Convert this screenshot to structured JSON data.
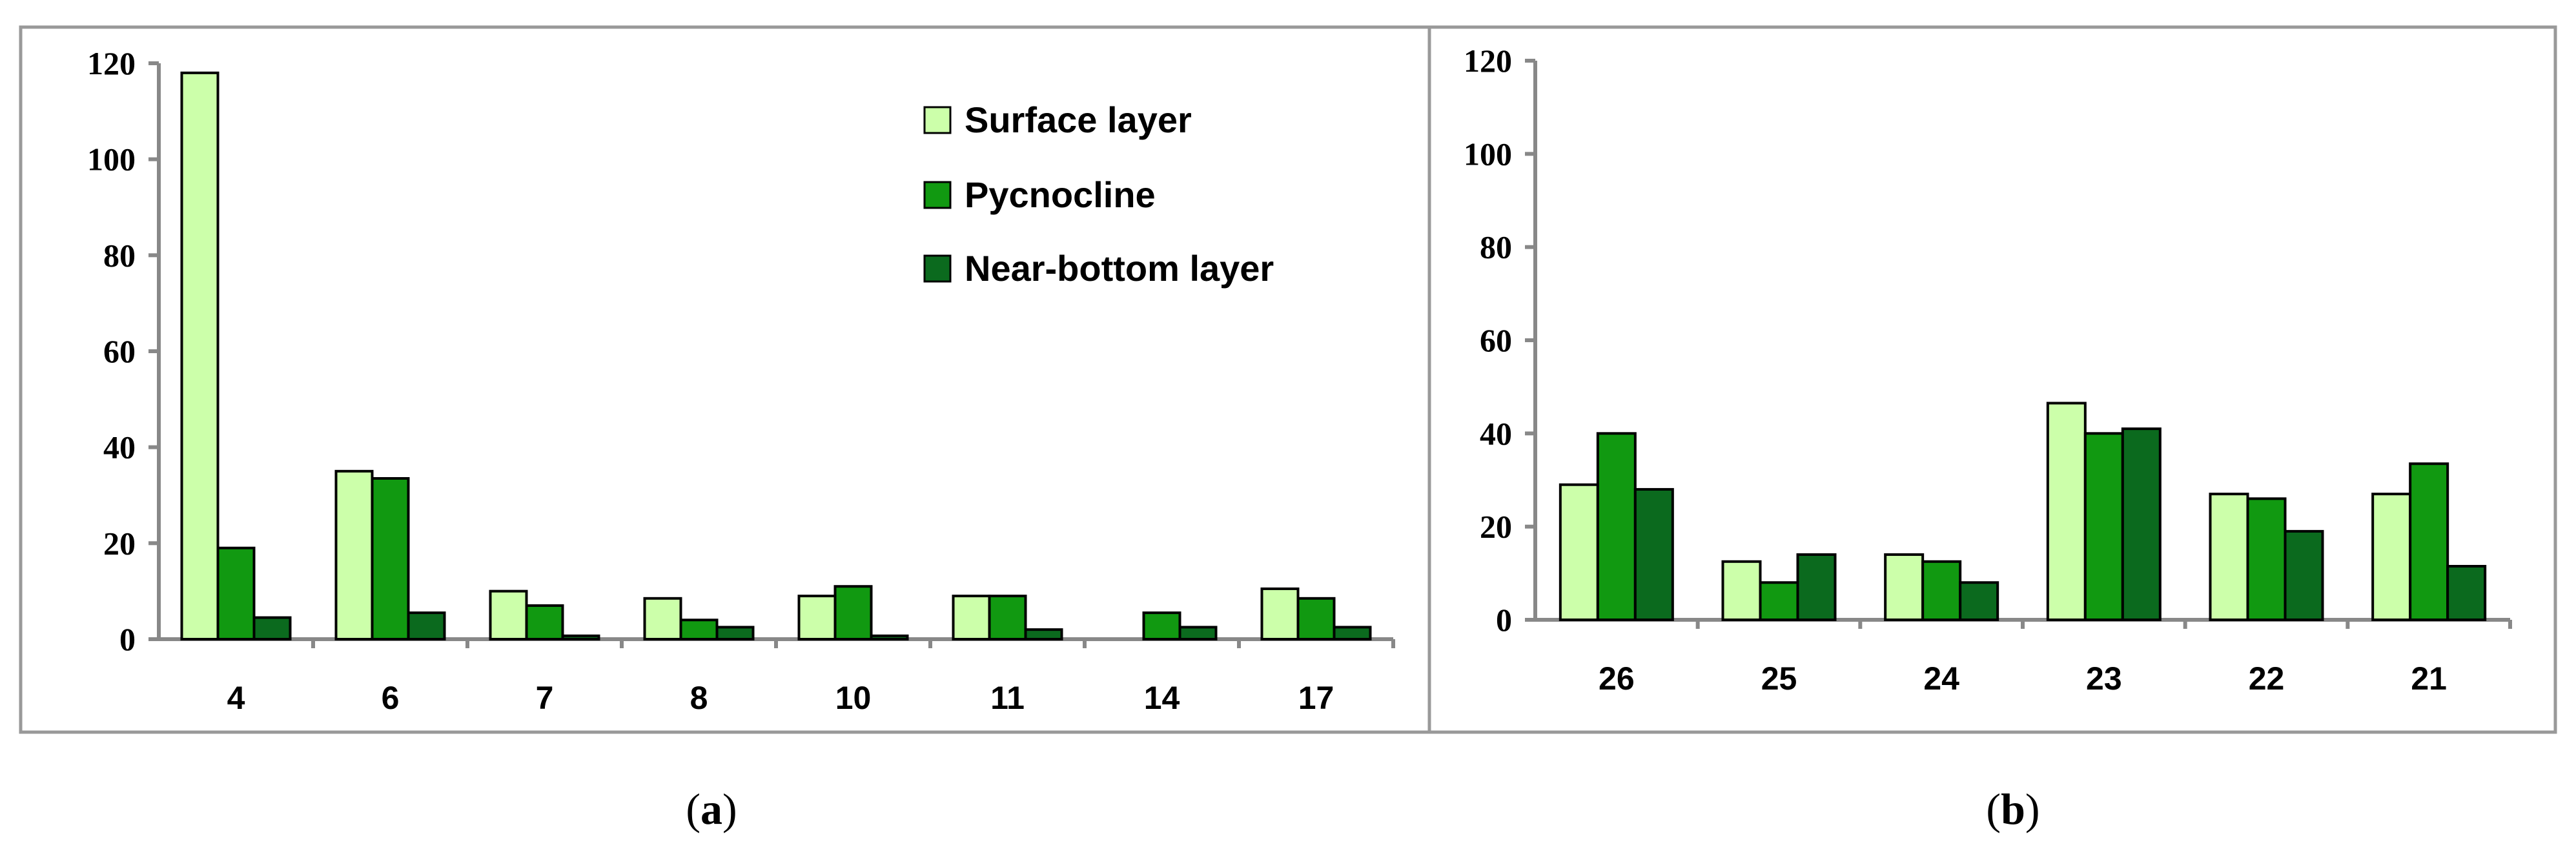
{
  "colors": {
    "surface": "#ccffaa",
    "pycnocline": "#119911",
    "near_bottom": "#0b6a1e",
    "axis": "#888888",
    "frame": "#999999"
  },
  "chart_data": [
    {
      "type": "bar",
      "panel_label": "a",
      "categories": [
        "4",
        "6",
        "7",
        "8",
        "10",
        "11",
        "14",
        "17"
      ],
      "series": [
        {
          "name": "Surface layer",
          "values": [
            118,
            35,
            10,
            8.5,
            9,
            9,
            0,
            10.5
          ]
        },
        {
          "name": "Pycnocline",
          "values": [
            19,
            33.5,
            7,
            4,
            11,
            9,
            5.5,
            8.5
          ]
        },
        {
          "name": "Near-bottom layer",
          "values": [
            4.5,
            5.5,
            0.7,
            2.5,
            0.7,
            2,
            2.5,
            2.5
          ]
        }
      ],
      "ylim": [
        0,
        120
      ],
      "yticks": [
        0,
        20,
        40,
        60,
        80,
        100,
        120
      ],
      "legend_position": "top-right",
      "grid": false
    },
    {
      "type": "bar",
      "panel_label": "b",
      "categories": [
        "26",
        "25",
        "24",
        "23",
        "22",
        "21"
      ],
      "series": [
        {
          "name": "Surface layer",
          "values": [
            29,
            12.5,
            14,
            46.5,
            27,
            27
          ]
        },
        {
          "name": "Pycnocline",
          "values": [
            40,
            8,
            12.5,
            40,
            26,
            33.5
          ]
        },
        {
          "name": "Near-bottom layer",
          "values": [
            28,
            14,
            8,
            41,
            19,
            11.5
          ]
        }
      ],
      "ylim": [
        0,
        120
      ],
      "yticks": [
        0,
        20,
        40,
        60,
        80,
        100,
        120
      ],
      "grid": false
    }
  ]
}
